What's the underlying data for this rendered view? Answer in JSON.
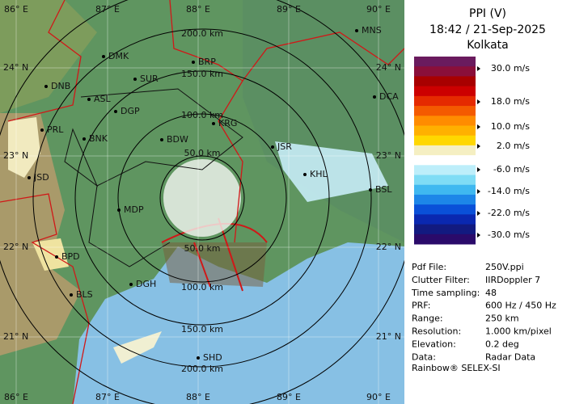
{
  "map": {
    "lon_labels_top": [
      "86° E",
      "87° E",
      "88° E",
      "89° E",
      "90° E"
    ],
    "lon_labels_bottom": [
      "86° E",
      "87° E",
      "88° E",
      "89° E",
      "90° E"
    ],
    "lat_labels_left": [
      "24° N",
      "23° N",
      "22° N",
      "21° N"
    ],
    "lat_labels_right": [
      "24° N",
      "23° N",
      "22° N",
      "21° N"
    ],
    "ring_labels_top": [
      "50.0 km",
      "100.0 km",
      "150.0 km",
      "200.0 km"
    ],
    "ring_labels_bottom": [
      "50.0 km",
      "100.0 km",
      "150.0 km",
      "200.0 km"
    ],
    "cities": [
      "MNS",
      "DMK",
      "BRP",
      "DNB",
      "SUR",
      "ASL",
      "DGP",
      "DCA",
      "KRG",
      "PRL",
      "BNK",
      "BDW",
      "JSR",
      "KHL",
      "JSD",
      "BSL",
      "MDP",
      "BPD",
      "DGH",
      "BLS",
      "SHD"
    ]
  },
  "panel": {
    "title": "PPI (V)",
    "time": "18:42 / 21-Sep-2025",
    "station": "Kolkata",
    "scale_labels": [
      "30.0 m/s",
      "18.0 m/s",
      "10.0 m/s",
      "2.0 m/s",
      "-6.0 m/s",
      "-14.0 m/s",
      "-22.0 m/s",
      "-30.0 m/s"
    ],
    "info": [
      [
        "Pdf File:",
        "250V.ppi"
      ],
      [
        "Clutter Filter:",
        "IIRDoppler 7"
      ],
      [
        "Time sampling:",
        "48"
      ],
      [
        "PRF:",
        "600 Hz / 450 Hz"
      ],
      [
        "Range:",
        "250 km"
      ],
      [
        "Resolution:",
        "1.000 km/pixel"
      ],
      [
        "Elevation:",
        "0.2 deg"
      ],
      [
        "Data:",
        "Radar Data"
      ]
    ],
    "footer": "Rainbow® SELEX-SI"
  }
}
